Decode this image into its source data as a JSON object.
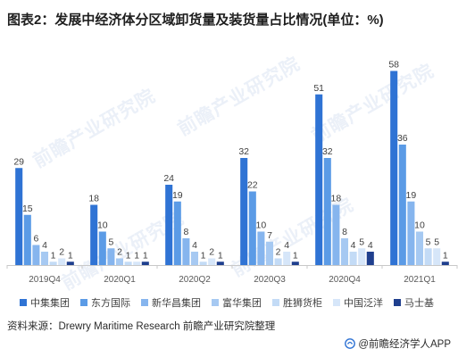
{
  "watermark": "前瞻产业研究院",
  "chart_data": {
    "type": "bar",
    "title": "图表2：发展中经济体分区域卸货量及装货量占比情况(单位：%)",
    "xlabel": "",
    "ylabel": "",
    "categories": [
      "2019Q4",
      "2020Q1",
      "2020Q2",
      "2020Q3",
      "2020Q4",
      "2021Q1"
    ],
    "series": [
      {
        "name": "中集集团",
        "color": "#2f73d4",
        "values": [
          29,
          18,
          24,
          32,
          51,
          58
        ]
      },
      {
        "name": "东方国际",
        "color": "#5b9be6",
        "values": [
          15,
          10,
          19,
          22,
          32,
          36
        ]
      },
      {
        "name": "新华昌集团",
        "color": "#86b5ee",
        "values": [
          6,
          5,
          8,
          10,
          18,
          19
        ]
      },
      {
        "name": "富华集团",
        "color": "#a6c9f2",
        "values": [
          4,
          2,
          4,
          7,
          8,
          10
        ]
      },
      {
        "name": "胜狮货柜",
        "color": "#c3dbf6",
        "values": [
          1,
          1,
          1,
          2,
          4,
          5
        ]
      },
      {
        "name": "中国泛洋",
        "color": "#d6e6f9",
        "values": [
          2,
          1,
          2,
          4,
          5,
          5
        ]
      },
      {
        "name": "马士基",
        "color": "#1f3f8e",
        "values": [
          1,
          1,
          1,
          1,
          4,
          1
        ]
      }
    ],
    "ylim": [
      0,
      60
    ],
    "grid": false,
    "data_labels": true,
    "legend": "bottom"
  },
  "source": "资料来源：Drewry Maritime Research 前瞻产业研究院整理",
  "credit": "@前瞻经济学人APP"
}
